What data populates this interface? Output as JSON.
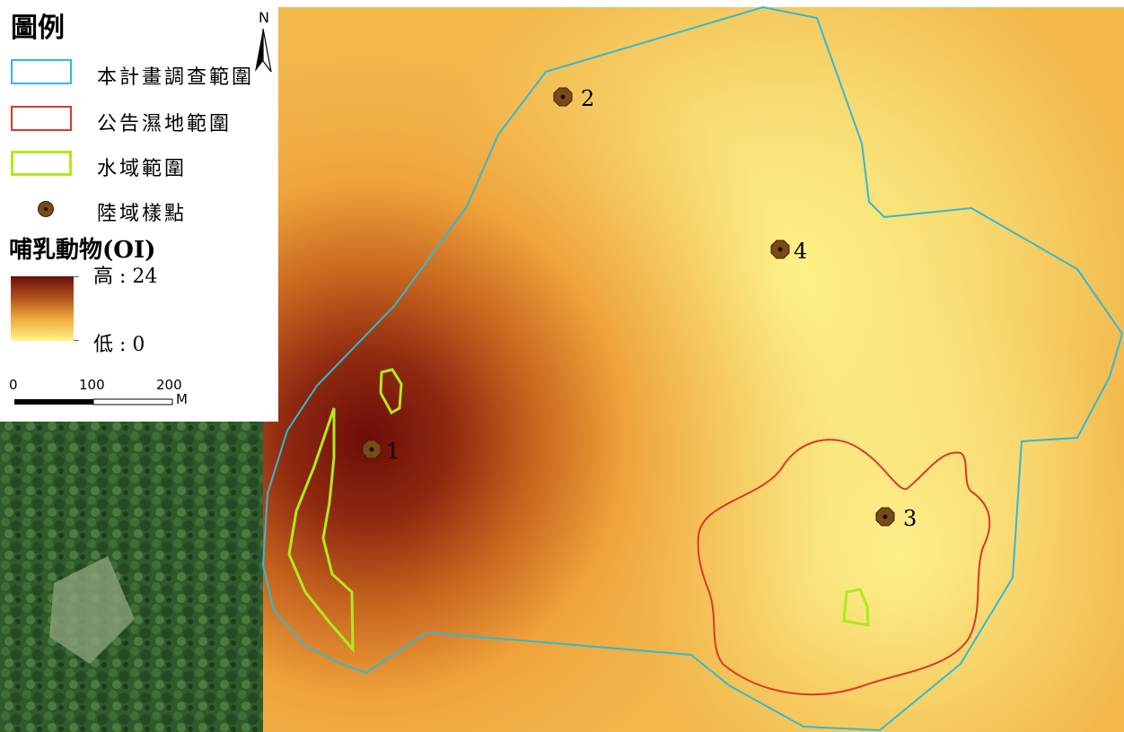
{
  "legend": {
    "title": "圖例",
    "items": [
      {
        "label": "本計畫調查範圍",
        "stroke": "#33b8d6"
      },
      {
        "label": "公告濕地範圍",
        "stroke": "#d83a2a"
      },
      {
        "label": "水域範圍",
        "stroke": "#aeea1c"
      },
      {
        "label": "陸域樣點",
        "fill": "#7a4a14"
      }
    ],
    "raster_title": "哺乳動物(OI)",
    "high_label": "高 : 24",
    "low_label": "低 : 0",
    "ramp_colors": [
      "#6a0f0b",
      "#f0a73a",
      "#fff58a"
    ]
  },
  "scalebar": {
    "ticks": [
      "0",
      "100",
      "200"
    ],
    "unit": "M"
  },
  "north_label": "N",
  "sites": [
    {
      "label": "1"
    },
    {
      "label": "2"
    },
    {
      "label": "3"
    },
    {
      "label": "4"
    }
  ],
  "colors": {
    "survey_boundary": "#33b8d6",
    "wetland_boundary": "#d83a2a",
    "water_boundary": "#aeea1c",
    "site_fill": "#7a4a14"
  }
}
